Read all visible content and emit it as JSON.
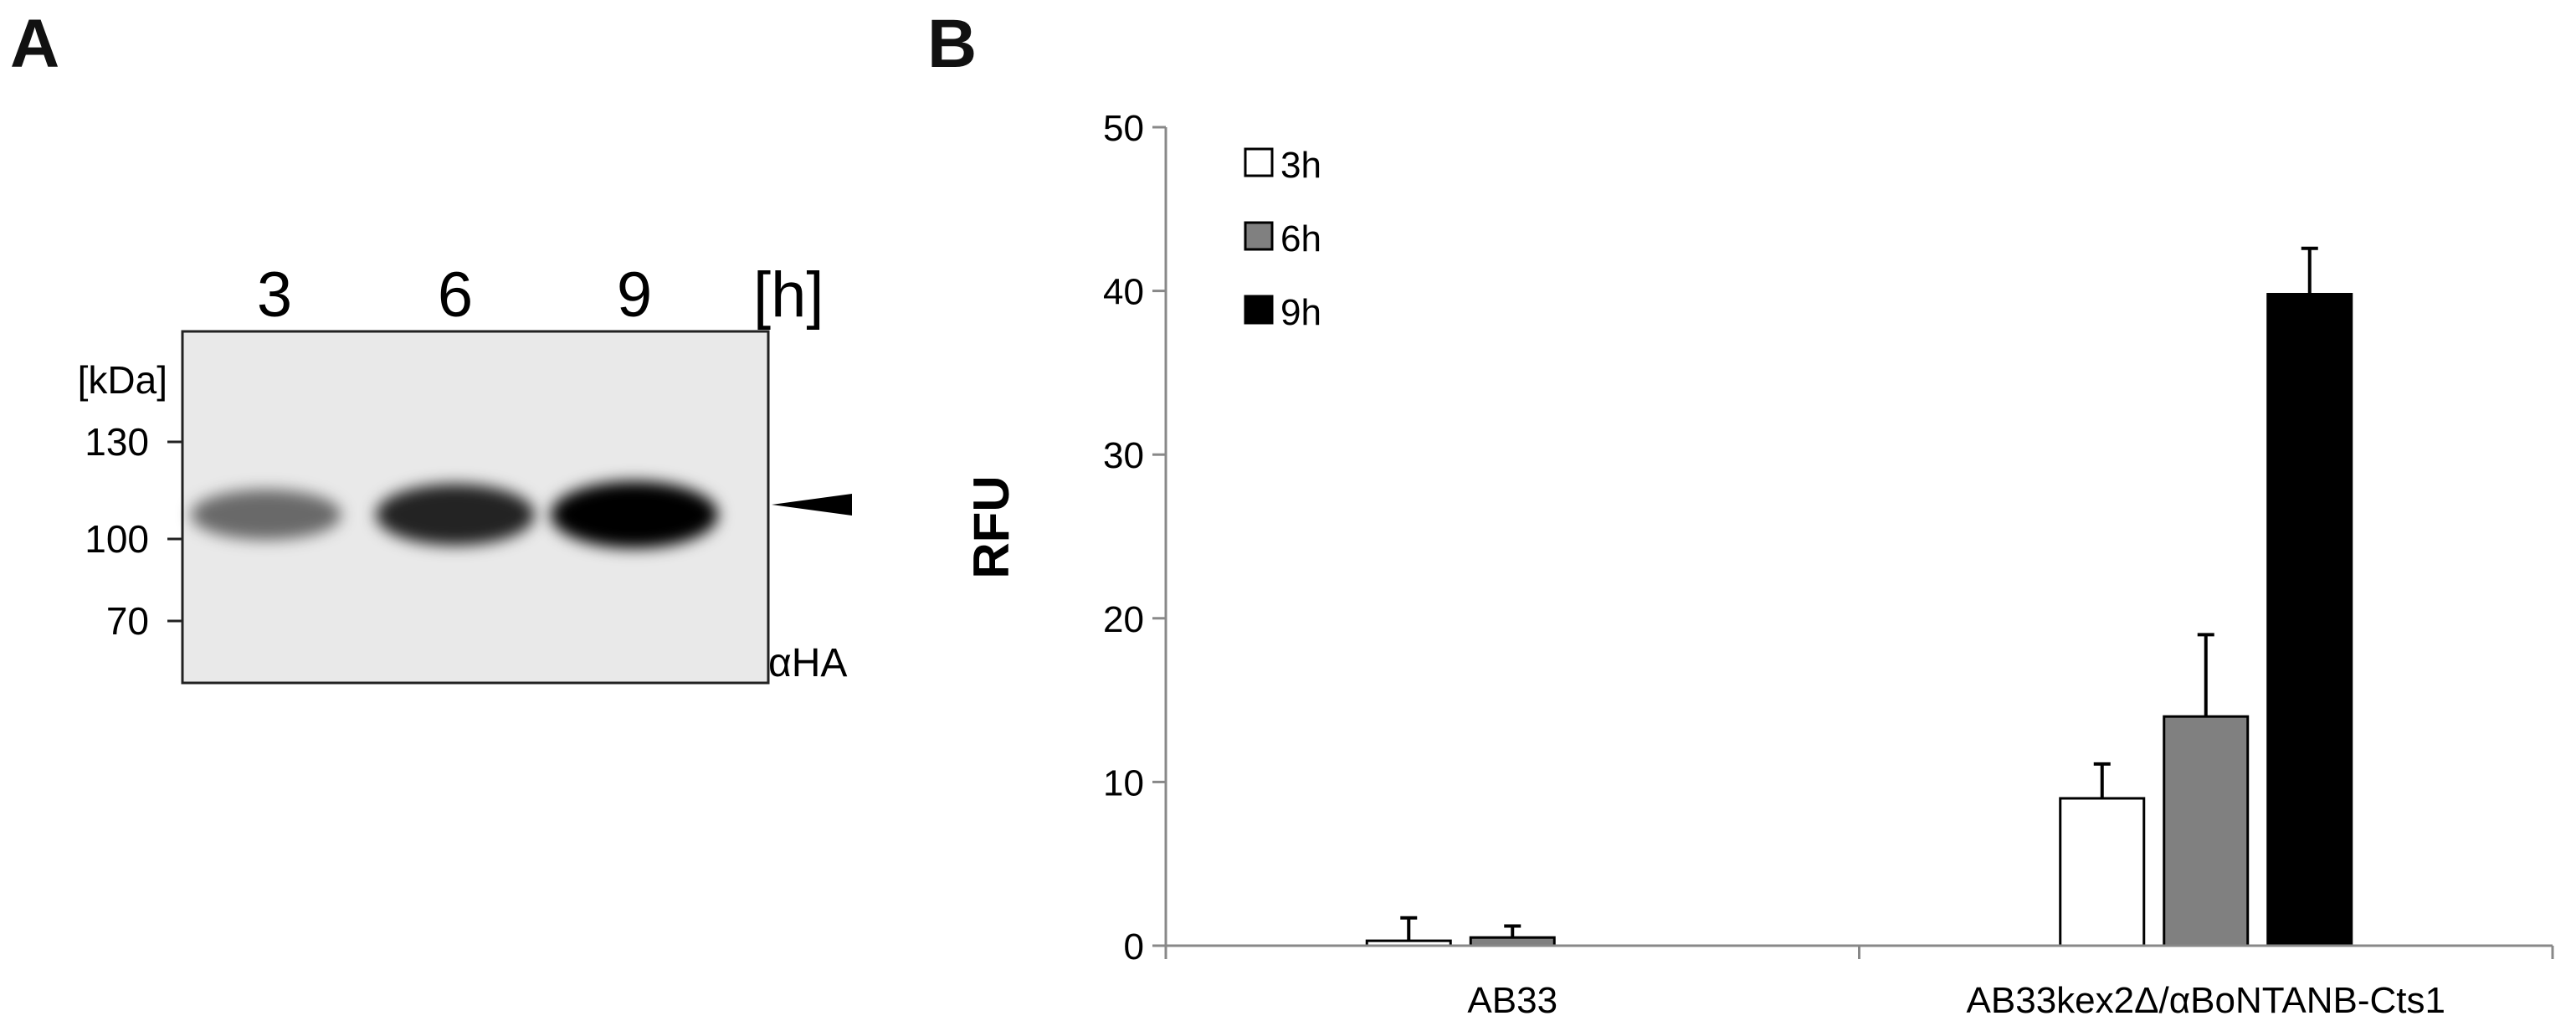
{
  "panels": {
    "a": "A",
    "b": "B"
  },
  "blot": {
    "lanes": [
      "3",
      "6",
      "9"
    ],
    "time_unit": "[h]",
    "mw_unit": "[kDa]",
    "markers": [
      "130",
      "100",
      "70"
    ],
    "antibody": "αHA",
    "band_intensity": [
      0.55,
      0.85,
      1.0
    ]
  },
  "chart_data": {
    "type": "bar",
    "categories": [
      "AB33",
      "AB33kex2Δ/αBoNTANB-Cts1"
    ],
    "series": [
      {
        "name": "3h",
        "values": [
          0.3,
          9.0
        ],
        "errors": [
          1.4,
          2.1
        ],
        "color": "#ffffff"
      },
      {
        "name": "6h",
        "values": [
          0.5,
          14.0
        ],
        "errors": [
          0.7,
          5.0
        ],
        "color": "#808080"
      },
      {
        "name": "9h",
        "values": [
          0.0,
          39.8
        ],
        "errors": [
          0.0,
          2.8
        ],
        "color": "#000000"
      }
    ],
    "ylabel": "RFU",
    "xlabel": "",
    "ylim": [
      0,
      50
    ],
    "yticks": [
      0,
      10,
      20,
      30,
      40,
      50
    ],
    "legend": "top-left",
    "grid": false
  }
}
